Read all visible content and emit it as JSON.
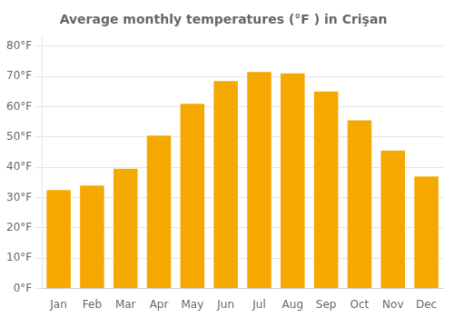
{
  "chart_data": {
    "type": "bar",
    "title": "Average monthly temperatures (°F ) in Crişan",
    "categories": [
      "Jan",
      "Feb",
      "Mar",
      "Apr",
      "May",
      "Jun",
      "Jul",
      "Aug",
      "Sep",
      "Oct",
      "Nov",
      "Dec"
    ],
    "values": [
      32.5,
      34.0,
      39.5,
      50.5,
      61.0,
      68.5,
      71.5,
      71.0,
      65.0,
      55.5,
      45.5,
      37.0
    ],
    "color": "#F5A800",
    "ylim": [
      0,
      83
    ],
    "yticks": [
      {
        "value": 0,
        "label": "0°F"
      },
      {
        "value": 10,
        "label": "10°F"
      },
      {
        "value": 20,
        "label": "20°F"
      },
      {
        "value": 30,
        "label": "30°F"
      },
      {
        "value": 40,
        "label": "40°F"
      },
      {
        "value": 50,
        "label": "50°F"
      },
      {
        "value": 60,
        "label": "60°F"
      },
      {
        "value": 70,
        "label": "70°F"
      },
      {
        "value": 80,
        "label": "80°F"
      }
    ],
    "grid": true
  }
}
